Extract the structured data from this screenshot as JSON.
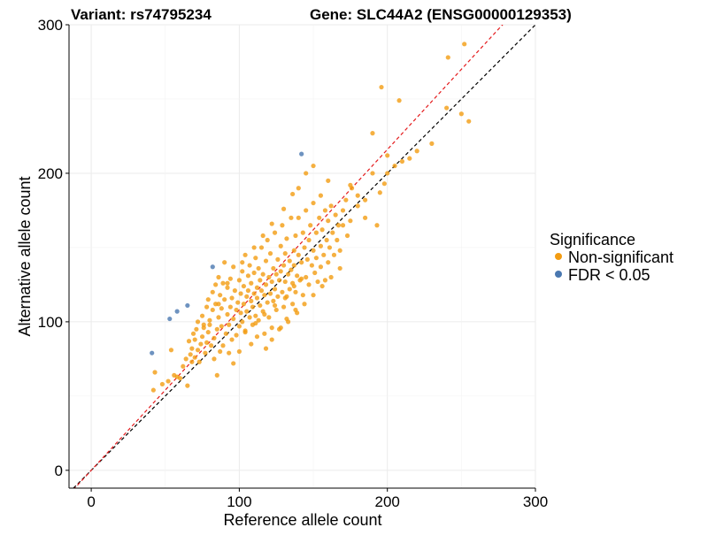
{
  "chart_data": {
    "type": "scatter",
    "title_left": "Variant: rs74795234",
    "title_right": "Gene: SLC44A2 (ENSG00000129353)",
    "xlabel": "Reference allele count",
    "ylabel": "Alternative allele count",
    "xlim": [
      -15,
      300
    ],
    "ylim": [
      -12,
      300
    ],
    "x_ticks": [
      0,
      100,
      200,
      300
    ],
    "y_ticks": [
      0,
      100,
      200,
      300
    ],
    "x_tick_labels": [
      "0",
      "100",
      "200",
      "300"
    ],
    "y_tick_labels": [
      "0",
      "100",
      "200",
      "300"
    ],
    "grid": true,
    "reference_lines": [
      {
        "slope": 1.0,
        "intercept": 0,
        "color": "#000000",
        "style": "dashed"
      },
      {
        "slope": 1.08,
        "intercept": 0,
        "color": "#e41a1c",
        "style": "dashed"
      }
    ],
    "legend": {
      "title": "Significance",
      "position": "right",
      "entries": [
        {
          "label": "Non-significant",
          "color": "#F39C12"
        },
        {
          "label": "FDR < 0.05",
          "color": "#4A78B0"
        }
      ]
    },
    "series": [
      {
        "name": "FDR < 0.05",
        "color": "#4A78B0",
        "points": [
          [
            41,
            79
          ],
          [
            53,
            102
          ],
          [
            58,
            107
          ],
          [
            65,
            111
          ],
          [
            82,
            137
          ],
          [
            142,
            213
          ]
        ]
      },
      {
        "name": "Non-significant",
        "color": "#F39C12",
        "points": [
          [
            42,
            54
          ],
          [
            43,
            66
          ],
          [
            48,
            58
          ],
          [
            52,
            60
          ],
          [
            54,
            81
          ],
          [
            56,
            64
          ],
          [
            58,
            63
          ],
          [
            60,
            62
          ],
          [
            62,
            70
          ],
          [
            64,
            75
          ],
          [
            65,
            57
          ],
          [
            66,
            87
          ],
          [
            67,
            78
          ],
          [
            68,
            73
          ],
          [
            68,
            82
          ],
          [
            69,
            92
          ],
          [
            70,
            76
          ],
          [
            70,
            88
          ],
          [
            71,
            95
          ],
          [
            72,
            81
          ],
          [
            72,
            100
          ],
          [
            73,
            73
          ],
          [
            74,
            85
          ],
          [
            75,
            90
          ],
          [
            75,
            104
          ],
          [
            76,
            96
          ],
          [
            77,
            79
          ],
          [
            78,
            86
          ],
          [
            78,
            110
          ],
          [
            79,
            93
          ],
          [
            79,
            115
          ],
          [
            80,
            101
          ],
          [
            80,
            98
          ],
          [
            81,
            84
          ],
          [
            82,
            108
          ],
          [
            82,
            120
          ],
          [
            83,
            89
          ],
          [
            83,
            75
          ],
          [
            84,
            112
          ],
          [
            84,
            125
          ],
          [
            85,
            64
          ],
          [
            85,
            95
          ],
          [
            86,
            103
          ],
          [
            86,
            130
          ],
          [
            87,
            80
          ],
          [
            87,
            118
          ],
          [
            88,
            97
          ],
          [
            88,
            109
          ],
          [
            89,
            84
          ],
          [
            89,
            126
          ],
          [
            90,
            140
          ],
          [
            90,
            115
          ],
          [
            91,
            92
          ],
          [
            92,
            105
          ],
          [
            92,
            123
          ],
          [
            93,
            98
          ],
          [
            93,
            79
          ],
          [
            94,
            110
          ],
          [
            94,
            129
          ],
          [
            95,
            88
          ],
          [
            95,
            116
          ],
          [
            96,
            102
          ],
          [
            96,
            137
          ],
          [
            97,
            121
          ],
          [
            98,
            91
          ],
          [
            98,
            108
          ],
          [
            99,
            113
          ],
          [
            100,
            97
          ],
          [
            100,
            128
          ],
          [
            101,
            106
          ],
          [
            101,
            119
          ],
          [
            102,
            134
          ],
          [
            102,
            100
          ],
          [
            103,
            112
          ],
          [
            103,
            124
          ],
          [
            104,
            93
          ],
          [
            104,
            145
          ],
          [
            105,
            117
          ],
          [
            105,
            107
          ],
          [
            106,
            131
          ],
          [
            106,
            121
          ],
          [
            107,
            103
          ],
          [
            107,
            138
          ],
          [
            108,
            114
          ],
          [
            108,
            126
          ],
          [
            109,
            98
          ],
          [
            109,
            110
          ],
          [
            110,
            133
          ],
          [
            110,
            119
          ],
          [
            111,
            104
          ],
          [
            111,
            143
          ],
          [
            112,
            123
          ],
          [
            112,
            116
          ],
          [
            113,
            136
          ],
          [
            113,
            101
          ],
          [
            114,
            128
          ],
          [
            114,
            111
          ],
          [
            115,
            150
          ],
          [
            115,
            121
          ],
          [
            116,
            107
          ],
          [
            116,
            132
          ],
          [
            117,
            118
          ],
          [
            117,
            92
          ],
          [
            118,
            141
          ],
          [
            118,
            125
          ],
          [
            119,
            113
          ],
          [
            119,
            155
          ],
          [
            120,
            130
          ],
          [
            120,
            103
          ],
          [
            121,
            119
          ],
          [
            121,
            146
          ],
          [
            122,
            127
          ],
          [
            122,
            96
          ],
          [
            123,
            136
          ],
          [
            123,
            114
          ],
          [
            124,
            160
          ],
          [
            124,
            122
          ],
          [
            125,
            132
          ],
          [
            125,
            108
          ],
          [
            126,
            142
          ],
          [
            126,
            117
          ],
          [
            127,
            128
          ],
          [
            127,
            95
          ],
          [
            128,
            151
          ],
          [
            128,
            134
          ],
          [
            129,
            120
          ],
          [
            129,
            165
          ],
          [
            130,
            138
          ],
          [
            130,
            110
          ],
          [
            131,
            127
          ],
          [
            131,
            146
          ],
          [
            132,
            117
          ],
          [
            132,
            156
          ],
          [
            133,
            132
          ],
          [
            133,
            100
          ],
          [
            134,
            141
          ],
          [
            134,
            122
          ],
          [
            135,
            170
          ],
          [
            135,
            135
          ],
          [
            136,
            126
          ],
          [
            136,
            112
          ],
          [
            137,
            148
          ],
          [
            137,
            138
          ],
          [
            138,
            120
          ],
          [
            138,
            158
          ],
          [
            139,
            131
          ],
          [
            139,
            106
          ],
          [
            140,
            145
          ],
          [
            140,
            170
          ],
          [
            141,
            128
          ],
          [
            142,
            140
          ],
          [
            143,
            118
          ],
          [
            143,
            160
          ],
          [
            144,
            150
          ],
          [
            145,
            130
          ],
          [
            145,
            175
          ],
          [
            146,
            142
          ],
          [
            147,
            125
          ],
          [
            147,
            155
          ],
          [
            148,
            165
          ],
          [
            149,
            138
          ],
          [
            150,
            148
          ],
          [
            150,
            180
          ],
          [
            151,
            133
          ],
          [
            152,
            160
          ],
          [
            152,
            143
          ],
          [
            153,
            127
          ],
          [
            154,
            170
          ],
          [
            155,
            151
          ],
          [
            155,
            137
          ],
          [
            156,
            162
          ],
          [
            157,
            145
          ],
          [
            158,
            175
          ],
          [
            158,
            128
          ],
          [
            159,
            155
          ],
          [
            160,
            168
          ],
          [
            160,
            140
          ],
          [
            161,
            150
          ],
          [
            162,
            178
          ],
          [
            163,
            160
          ],
          [
            164,
            145
          ],
          [
            165,
            172
          ],
          [
            166,
            155
          ],
          [
            167,
            165
          ],
          [
            168,
            148
          ],
          [
            170,
            175
          ],
          [
            172,
            182
          ],
          [
            173,
            158
          ],
          [
            175,
            168
          ],
          [
            176,
            190
          ],
          [
            180,
            178
          ],
          [
            185,
            182
          ],
          [
            190,
            200
          ],
          [
            193,
            165
          ],
          [
            195,
            187
          ],
          [
            196,
            258
          ],
          [
            198,
            193
          ],
          [
            200,
            212
          ],
          [
            205,
            205
          ],
          [
            208,
            249
          ],
          [
            210,
            208
          ],
          [
            215,
            210
          ],
          [
            220,
            215
          ],
          [
            230,
            220
          ],
          [
            240,
            244
          ],
          [
            241,
            278
          ],
          [
            250,
            240
          ],
          [
            252,
            287
          ],
          [
            255,
            235
          ],
          [
            140,
            190
          ],
          [
            145,
            200
          ],
          [
            150,
            205
          ],
          [
            155,
            185
          ],
          [
            160,
            195
          ],
          [
            170,
            165
          ],
          [
            175,
            192
          ],
          [
            180,
            185
          ],
          [
            185,
            170
          ],
          [
            190,
            227
          ],
          [
            200,
            200
          ],
          [
            96,
            72
          ],
          [
            100,
            80
          ],
          [
            108,
            85
          ],
          [
            112,
            90
          ],
          [
            118,
            82
          ],
          [
            122,
            88
          ],
          [
            128,
            96
          ],
          [
            132,
            102
          ],
          [
            138,
            108
          ],
          [
            144,
            112
          ],
          [
            150,
            118
          ],
          [
            156,
            124
          ],
          [
            162,
            130
          ],
          [
            168,
            136
          ],
          [
            76,
            98
          ],
          [
            86,
            112
          ],
          [
            92,
            126
          ],
          [
            102,
            140
          ],
          [
            110,
            150
          ],
          [
            116,
            158
          ],
          [
            122,
            166
          ],
          [
            130,
            176
          ],
          [
            136,
            186
          ],
          [
            104,
            94
          ],
          [
            111,
            99
          ],
          [
            117,
            105
          ],
          [
            124,
            111
          ],
          [
            131,
            116
          ],
          [
            137,
            124
          ],
          [
            142,
            129
          ]
        ]
      }
    ]
  }
}
